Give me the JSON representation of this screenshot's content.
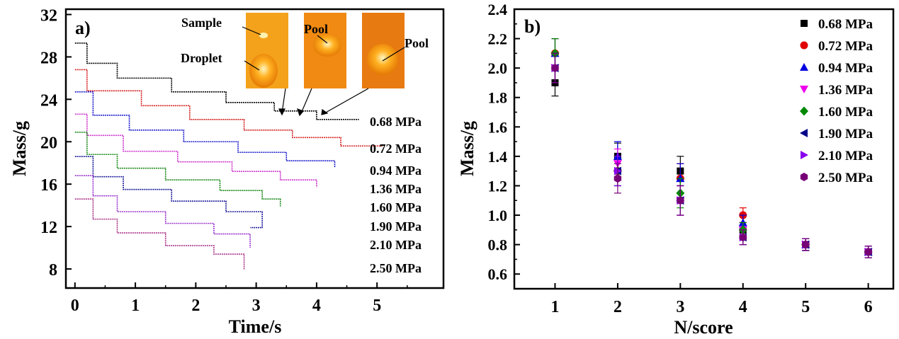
{
  "chart_data": [
    {
      "panel": "a)",
      "type": "line",
      "xlabel": "Time/s",
      "ylabel": "Mass/g",
      "xlim": [
        -0.15,
        6.1
      ],
      "ylim": [
        6.2,
        32.5
      ],
      "xticks": [
        0,
        1,
        2,
        3,
        4,
        5
      ],
      "yticks": [
        8,
        12,
        16,
        20,
        24,
        28,
        32
      ],
      "series": [
        {
          "name": "0.68 MPa",
          "color": "#000000",
          "steps": [
            [
              0.0,
              0.2,
              29.3
            ],
            [
              0.2,
              0.7,
              27.4
            ],
            [
              0.7,
              1.6,
              26.0
            ],
            [
              1.6,
              2.5,
              24.7
            ],
            [
              2.5,
              3.3,
              23.7
            ],
            [
              3.3,
              4.0,
              22.9
            ],
            [
              4.0,
              4.7,
              22.1
            ]
          ]
        },
        {
          "name": "0.72 MPa",
          "color": "#d42020",
          "steps": [
            [
              0.0,
              0.2,
              26.8
            ],
            [
              0.2,
              1.1,
              24.8
            ],
            [
              1.1,
              1.9,
              23.4
            ],
            [
              1.9,
              2.8,
              22.1
            ],
            [
              2.8,
              3.6,
              21.1
            ],
            [
              3.6,
              4.4,
              20.4
            ],
            [
              4.4,
              5.1,
              19.6
            ]
          ]
        },
        {
          "name": "0.94 MPa",
          "color": "#1a1acc",
          "steps": [
            [
              0.0,
              0.3,
              24.7
            ],
            [
              0.3,
              0.9,
              22.5
            ],
            [
              0.9,
              1.8,
              21.1
            ],
            [
              1.8,
              2.7,
              20.0
            ],
            [
              2.7,
              3.5,
              19.0
            ],
            [
              3.5,
              4.3,
              18.2
            ],
            [
              4.3,
              4.0,
              17.6
            ]
          ]
        },
        {
          "name": "1.36 MPa",
          "color": "#cc33cc",
          "steps": [
            [
              0.0,
              0.2,
              22.6
            ],
            [
              0.2,
              0.8,
              20.6
            ],
            [
              0.8,
              1.7,
              19.1
            ],
            [
              1.7,
              2.6,
              18.1
            ],
            [
              2.6,
              3.4,
              17.2
            ],
            [
              3.4,
              4.0,
              16.4
            ],
            [
              4.0,
              3.3,
              15.7
            ]
          ]
        },
        {
          "name": "1.60 MPa",
          "color": "#1a8a1a",
          "steps": [
            [
              0.0,
              0.2,
              20.9
            ],
            [
              0.2,
              0.7,
              18.8
            ],
            [
              0.7,
              1.5,
              17.5
            ],
            [
              1.5,
              2.4,
              16.4
            ],
            [
              2.4,
              3.1,
              15.4
            ],
            [
              3.1,
              3.4,
              14.6
            ],
            [
              3.4,
              3.1,
              13.9
            ]
          ]
        },
        {
          "name": "1.90 MPa",
          "color": "#1a1a99",
          "steps": [
            [
              0.0,
              0.3,
              18.6
            ],
            [
              0.3,
              0.8,
              16.7
            ],
            [
              0.8,
              1.6,
              15.5
            ],
            [
              1.6,
              2.5,
              14.4
            ],
            [
              2.5,
              3.1,
              13.4
            ],
            [
              3.1,
              2.9,
              12.6
            ],
            [
              2.9,
              2.9,
              11.9
            ]
          ]
        },
        {
          "name": "2.10 MPa",
          "color": "#9933cc",
          "steps": [
            [
              0.0,
              0.3,
              16.8
            ],
            [
              0.3,
              0.7,
              14.9
            ],
            [
              0.7,
              1.5,
              13.4
            ],
            [
              1.5,
              2.3,
              12.3
            ],
            [
              2.3,
              2.9,
              11.3
            ],
            [
              2.9,
              2.9,
              10.6
            ],
            [
              2.9,
              2.9,
              10.0
            ]
          ]
        },
        {
          "name": "2.50 MPa",
          "color": "#aa3388",
          "steps": [
            [
              0.0,
              0.3,
              14.6
            ],
            [
              0.3,
              0.7,
              12.7
            ],
            [
              0.7,
              1.5,
              11.4
            ],
            [
              1.5,
              2.3,
              10.2
            ],
            [
              2.3,
              2.8,
              9.4
            ],
            [
              2.8,
              2.8,
              8.6
            ],
            [
              2.8,
              2.8,
              7.9
            ]
          ]
        }
      ],
      "line_labels": [
        "0.68 MPa",
        "0.72 MPa",
        "0.94 MPa",
        "1.36 MPa",
        "1.60 MPa",
        "1.90 MPa",
        "2.10 MPa",
        "2.50 MPa"
      ],
      "annotations": [
        "Sample",
        "Droplet",
        "Pool",
        "Pool"
      ]
    },
    {
      "panel": "b)",
      "type": "scatter",
      "xlabel": "N/score",
      "ylabel": "Mass/g",
      "xlim": [
        0.35,
        6.4
      ],
      "ylim": [
        0.5,
        2.4
      ],
      "xticks": [
        1,
        2,
        3,
        4,
        5,
        6
      ],
      "yticks": [
        0.6,
        0.8,
        1.0,
        1.2,
        1.4,
        1.6,
        1.8,
        2.0,
        2.2,
        2.4
      ],
      "x": [
        1,
        2,
        3,
        4,
        5,
        6
      ],
      "series": [
        {
          "name": "0.68 MPa",
          "marker": "square",
          "color": "#000000",
          "values": [
            1.9,
            1.4,
            1.3,
            0.9,
            0.8,
            0.75
          ],
          "err": [
            0.09,
            0.09,
            0.1,
            0.05,
            0.04,
            0.04
          ]
        },
        {
          "name": "0.72 MPa",
          "marker": "circle",
          "color": "#e00000",
          "values": [
            2.1,
            1.3,
            1.25,
            1.0,
            0.8,
            0.75
          ],
          "err": [
            0.1,
            0.1,
            0.1,
            0.05,
            0.04,
            0.04
          ]
        },
        {
          "name": "0.94 MPa",
          "marker": "triangle-up",
          "color": "#0000e0",
          "values": [
            2.1,
            1.4,
            1.25,
            0.95,
            0.8,
            0.75
          ],
          "err": [
            0.1,
            0.1,
            0.1,
            0.05,
            0.04,
            0.04
          ]
        },
        {
          "name": "1.36 MPa",
          "marker": "triangle-down",
          "color": "#ee00ee",
          "values": [
            2.0,
            1.35,
            1.1,
            0.9,
            0.8,
            0.75
          ],
          "err": [
            0.1,
            0.1,
            0.1,
            0.05,
            0.04,
            0.04
          ]
        },
        {
          "name": "1.60 MPa",
          "marker": "diamond",
          "color": "#008800",
          "values": [
            2.1,
            1.3,
            1.15,
            0.9,
            0.8,
            0.75
          ],
          "err": [
            0.1,
            0.1,
            0.1,
            0.05,
            0.04,
            0.04
          ]
        },
        {
          "name": "1.90 MPa",
          "marker": "triangle-left",
          "color": "#000088",
          "values": [
            2.0,
            1.3,
            1.1,
            0.85,
            0.8,
            0.75
          ],
          "err": [
            0.1,
            0.1,
            0.1,
            0.05,
            0.04,
            0.04
          ]
        },
        {
          "name": "2.10 MPa",
          "marker": "triangle-right",
          "color": "#8800ee",
          "values": [
            2.0,
            1.3,
            1.1,
            0.85,
            0.8,
            0.75
          ],
          "err": [
            0.1,
            0.1,
            0.1,
            0.05,
            0.04,
            0.04
          ]
        },
        {
          "name": "2.50 MPa",
          "marker": "hexagon",
          "color": "#770077",
          "values": [
            2.0,
            1.25,
            1.1,
            0.85,
            0.8,
            0.75
          ],
          "err": [
            0.1,
            0.1,
            0.1,
            0.05,
            0.04,
            0.04
          ]
        }
      ],
      "legend_position": "top-right"
    }
  ]
}
